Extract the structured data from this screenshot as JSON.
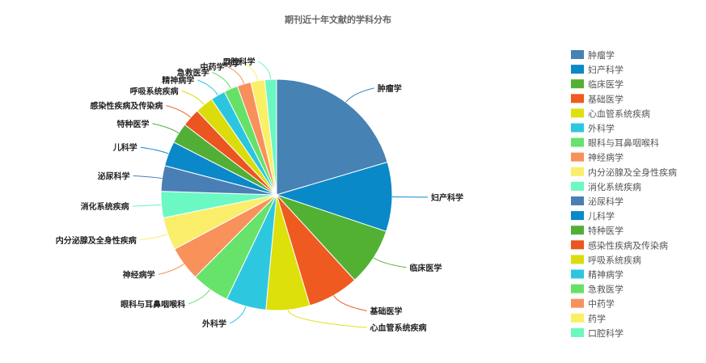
{
  "chart_data": {
    "type": "pie",
    "title": "期刊近十年文献的学科分布",
    "slices": [
      {
        "label": "肿瘤学",
        "value": 20.0,
        "color": "#4682B4"
      },
      {
        "label": "妇产科学",
        "value": 9.5,
        "color": "#0A89C8"
      },
      {
        "label": "临床医学",
        "value": 7.9,
        "color": "#52B132"
      },
      {
        "label": "基础医学",
        "value": 7.0,
        "color": "#EE5A20"
      },
      {
        "label": "心血管系统疾病",
        "value": 6.0,
        "color": "#DDE00A"
      },
      {
        "label": "外科学",
        "value": 5.5,
        "color": "#2EC7E0"
      },
      {
        "label": "眼科与耳鼻咽喉科",
        "value": 5.2,
        "color": "#67E26B"
      },
      {
        "label": "神经病学",
        "value": 4.7,
        "color": "#F8915A"
      },
      {
        "label": "内分泌腺及全身性疾病",
        "value": 4.5,
        "color": "#FAEE6A"
      },
      {
        "label": "消化系统疾病",
        "value": 3.6,
        "color": "#6BF8C3"
      },
      {
        "label": "泌尿科学",
        "value": 3.5,
        "color": "#4A7FB5"
      },
      {
        "label": "儿科学",
        "value": 3.4,
        "color": "#0A88C9"
      },
      {
        "label": "特种医学",
        "value": 2.8,
        "color": "#52AF36"
      },
      {
        "label": "感染性疾病及传染病",
        "value": 2.5,
        "color": "#EB5520"
      },
      {
        "label": "呼吸系统疾病",
        "value": 2.5,
        "color": "#DCDC0C"
      },
      {
        "label": "精神病学",
        "value": 2.0,
        "color": "#2BC5E0"
      },
      {
        "label": "急救医学",
        "value": 1.9,
        "color": "#66E167"
      },
      {
        "label": "中药学",
        "value": 1.9,
        "color": "#F8905C"
      },
      {
        "label": "药学",
        "value": 1.9,
        "color": "#F9F066"
      },
      {
        "label": "口腔科学",
        "value": 1.6,
        "color": "#6CF6C1"
      }
    ],
    "legend_position": "right",
    "start_angle": "top, clockwise"
  }
}
